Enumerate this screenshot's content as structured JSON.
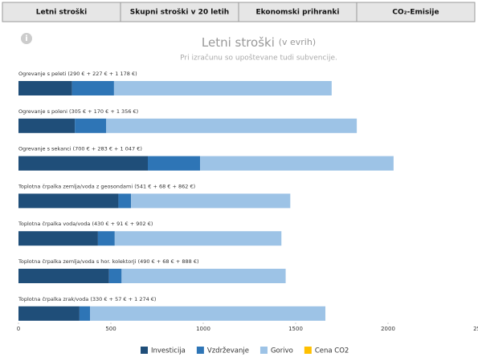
{
  "tabs": [
    "Letni stroški",
    "Skupni stroški v 20 letih",
    "Ekonomski prihranki",
    "CO₂-Emisije"
  ],
  "chart_data": {
    "type": "bar",
    "orientation": "horizontal",
    "stacked": true,
    "title": "Letni stroški",
    "title_suffix": "(v evrih)",
    "subtitle": "Pri izračunu so upoštevane tudi subvencije.",
    "categories": [
      "Ogrevanje s peleti (290 € + 227 € + 1 178 €)",
      "Ogrevanje s polenі (305 € + 170 € + 1 356 €)",
      "Ogrevanje s sekanci (700 € + 283 € + 1 047 €)",
      "Toplotna črpalka zemlja/voda z geosondami (541 € + 68 € + 862 €)",
      "Toplotna črpalka voda/voda (430 € + 91 € + 902 €)",
      "Toplotna črpalka zemlja/voda s hor. kolektorji (490 € + 68 € + 888 €)",
      "Toplotna črpalka zrak/voda (330 € + 57 € + 1 274 €)"
    ],
    "series": [
      {
        "name": "Investicija",
        "color": "#1f4e79",
        "values": [
          290,
          305,
          700,
          541,
          430,
          490,
          330
        ]
      },
      {
        "name": "Vzdrževanje",
        "color": "#2e75b6",
        "values": [
          227,
          170,
          283,
          68,
          91,
          68,
          57
        ]
      },
      {
        "name": "Gorivo",
        "color": "#9dc3e6",
        "values": [
          1178,
          1356,
          1047,
          862,
          902,
          888,
          1274
        ]
      },
      {
        "name": "Cena CO2",
        "color": "#ffc000",
        "values": [
          0,
          0,
          0,
          0,
          0,
          0,
          0
        ]
      }
    ],
    "xlim": [
      0,
      2500
    ],
    "xticks": [
      0,
      500,
      1000,
      1500,
      2000,
      2500
    ]
  }
}
